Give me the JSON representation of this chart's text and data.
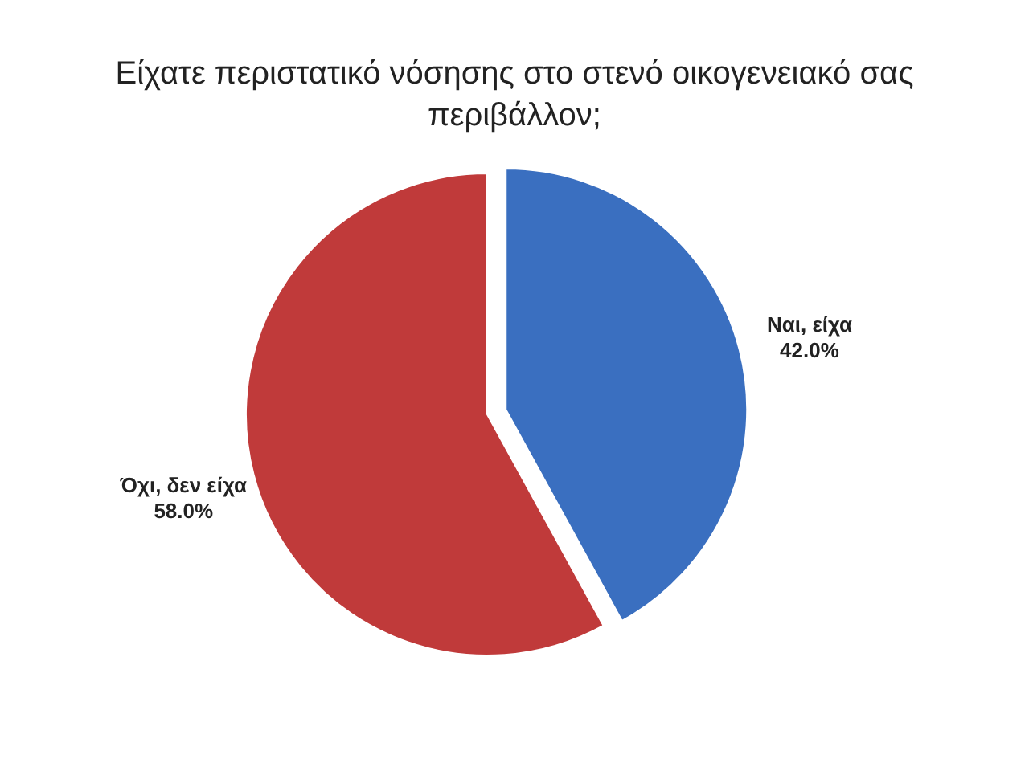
{
  "chart_data": {
    "type": "pie",
    "title": "Είχατε περιστατικό νόσησης στο στενό οικογενειακό σας περιβάλλον;",
    "categories": [
      "Ναι, είχα",
      "Όχι, δεν είχα"
    ],
    "values": [
      42,
      58
    ],
    "colors": [
      "#3a6fc0",
      "#c03a3a"
    ],
    "value_labels": [
      "42.0%",
      "58.0%"
    ]
  }
}
